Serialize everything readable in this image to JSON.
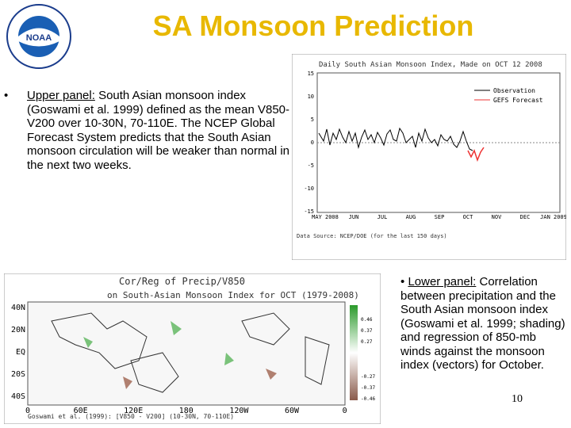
{
  "header": {
    "title": "SA Monsoon Prediction",
    "logo_text": "NOAA"
  },
  "upper_text": {
    "bullet": "•",
    "label": "Upper panel:",
    "text": " South Asian monsoon index (Goswami et al. 1999) defined as the mean V850-V200 over 10-30N, 70-110E. The NCEP Global Forecast System predicts that the South Asian monsoon circulation will be weaker than normal in the next two weeks."
  },
  "upper_chart": {
    "title": "Daily South Asian Monsoon Index, Made on OCT 12 2008",
    "legend": [
      "Observation",
      "GEFS Forecast"
    ],
    "yticks": [
      "15",
      "10",
      "5",
      "0",
      "-5",
      "-10",
      "-15"
    ],
    "xticks": [
      "MAY\n2008",
      "JUN",
      "JUL",
      "AUG",
      "SEP",
      "OCT",
      "NOV",
      "DEC",
      "JAN\n2009"
    ],
    "source": "Data Source: NCEP/DOE (for the last 150 days)"
  },
  "lower_chart": {
    "title": "Cor/Reg of Precip/V850",
    "subtitle": "on South-Asian Monsoon Index for OCT (1979-2008)",
    "lat_labels": [
      "40N",
      "20N",
      "EQ",
      "20S",
      "40S"
    ],
    "lon_labels": [
      "0",
      "60E",
      "120E",
      "180",
      "120W",
      "60W",
      "0"
    ],
    "colorbar": [
      "0.46",
      "0.37",
      "0.27",
      "-0.27",
      "-0.37",
      "-0.46"
    ],
    "footnote": "Goswami et al. (1999): [V850 - V200] (10-30N, 70-110E)"
  },
  "lower_text": {
    "bullet": "•",
    "label": "Lower panel:",
    "text": " Correlation between precipitation and the South Asian monsoon index (Goswami et al. 1999; shading) and regression of 850-mb winds against the monsoon index (vectors) for October."
  },
  "page_number": "10"
}
